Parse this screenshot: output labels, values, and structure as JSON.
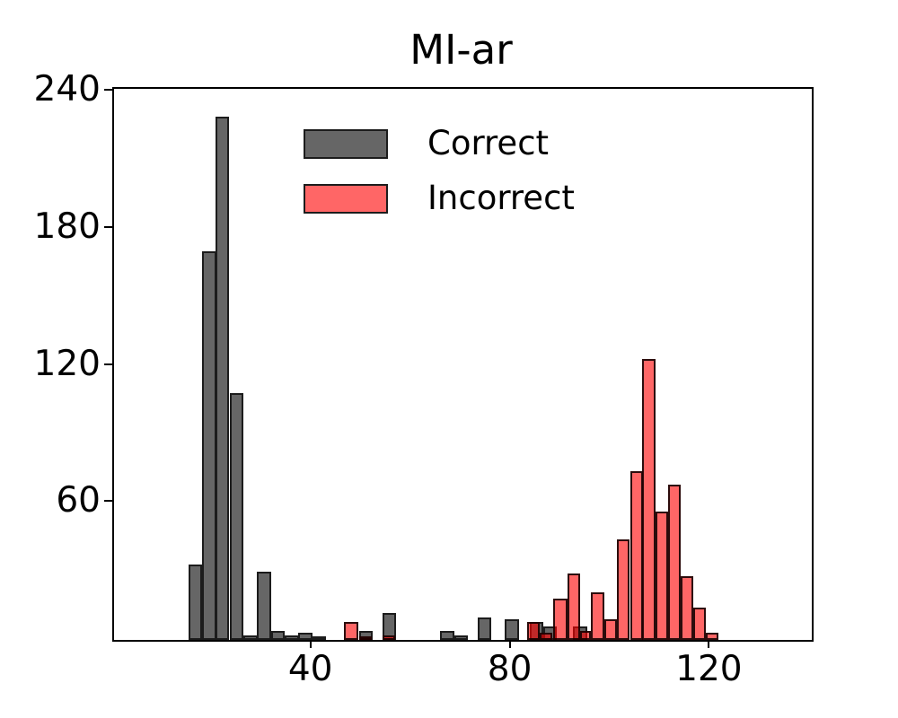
{
  "title": "MI-ar",
  "legend": {
    "items": [
      {
        "label": "Correct",
        "color": "#666666"
      },
      {
        "label": "Incorrect",
        "color": "#ff6666"
      }
    ]
  },
  "colors": {
    "correct_fill": "#666666",
    "incorrect_fill": "#ff6666",
    "incorrect_fill_rgba": "rgba(255,0,0,0.6)",
    "overlap_fill": "#c22929",
    "bar_edge": "#1c1c1c",
    "axis": "#000000"
  },
  "chart_data": {
    "type": "bar",
    "subtype": "overlaid-histogram",
    "title": "MI-ar",
    "xlabel": "",
    "ylabel": "",
    "xlim": [
      0.2,
      140.3
    ],
    "ylim": [
      0,
      241.2
    ],
    "x_ticks": [
      40,
      80,
      120
    ],
    "y_ticks": [
      60,
      120,
      180,
      240
    ],
    "grid": false,
    "legend_position": "upper center",
    "series": [
      {
        "name": "Correct",
        "color": "#666666",
        "bins": [
          {
            "x": 15.1,
            "w": 2.77,
            "count": 33
          },
          {
            "x": 17.9,
            "w": 2.77,
            "count": 170
          },
          {
            "x": 20.6,
            "w": 2.77,
            "count": 229
          },
          {
            "x": 23.4,
            "w": 2.77,
            "count": 108
          },
          {
            "x": 26.2,
            "w": 2.77,
            "count": 2
          },
          {
            "x": 28.9,
            "w": 2.77,
            "count": 30
          },
          {
            "x": 31.7,
            "w": 2.77,
            "count": 4
          },
          {
            "x": 34.5,
            "w": 2.77,
            "count": 2
          },
          {
            "x": 37.2,
            "w": 2.77,
            "count": 3
          },
          {
            "x": 40.0,
            "w": 2.77,
            "count": 1
          },
          {
            "x": 49.4,
            "w": 2.77,
            "count": 4
          },
          {
            "x": 54.1,
            "w": 2.77,
            "count": 12
          },
          {
            "x": 65.7,
            "w": 2.77,
            "count": 4
          },
          {
            "x": 68.5,
            "w": 2.77,
            "count": 2
          },
          {
            "x": 73.2,
            "w": 2.77,
            "count": 10
          },
          {
            "x": 78.7,
            "w": 2.77,
            "count": 9
          },
          {
            "x": 83.6,
            "w": 2.77,
            "count": 8
          },
          {
            "x": 86.3,
            "w": 2.77,
            "count": 6
          },
          {
            "x": 92.4,
            "w": 2.77,
            "count": 6
          }
        ]
      },
      {
        "name": "Incorrect",
        "color": "#ff6666",
        "bins": [
          {
            "x": 46.4,
            "w": 2.78,
            "count": 8
          },
          {
            "x": 49.4,
            "w": 2.58,
            "count": 1
          },
          {
            "x": 54.1,
            "w": 2.6,
            "count": 2
          },
          {
            "x": 83.1,
            "w": 2.6,
            "count": 8
          },
          {
            "x": 85.7,
            "w": 2.58,
            "count": 3
          },
          {
            "x": 88.3,
            "w": 2.89,
            "count": 18
          },
          {
            "x": 91.2,
            "w": 2.6,
            "count": 29
          },
          {
            "x": 93.7,
            "w": 2.22,
            "count": 4
          },
          {
            "x": 96.0,
            "w": 2.65,
            "count": 21
          },
          {
            "x": 98.6,
            "w": 2.58,
            "count": 9
          },
          {
            "x": 101.2,
            "w": 2.58,
            "count": 44
          },
          {
            "x": 103.8,
            "w": 2.53,
            "count": 74
          },
          {
            "x": 106.3,
            "w": 2.6,
            "count": 123
          },
          {
            "x": 108.9,
            "w": 2.53,
            "count": 56
          },
          {
            "x": 111.4,
            "w": 2.58,
            "count": 68
          },
          {
            "x": 114.0,
            "w": 2.53,
            "count": 28
          },
          {
            "x": 116.5,
            "w": 2.58,
            "count": 14
          },
          {
            "x": 119.1,
            "w": 2.53,
            "count": 3
          }
        ]
      }
    ]
  }
}
